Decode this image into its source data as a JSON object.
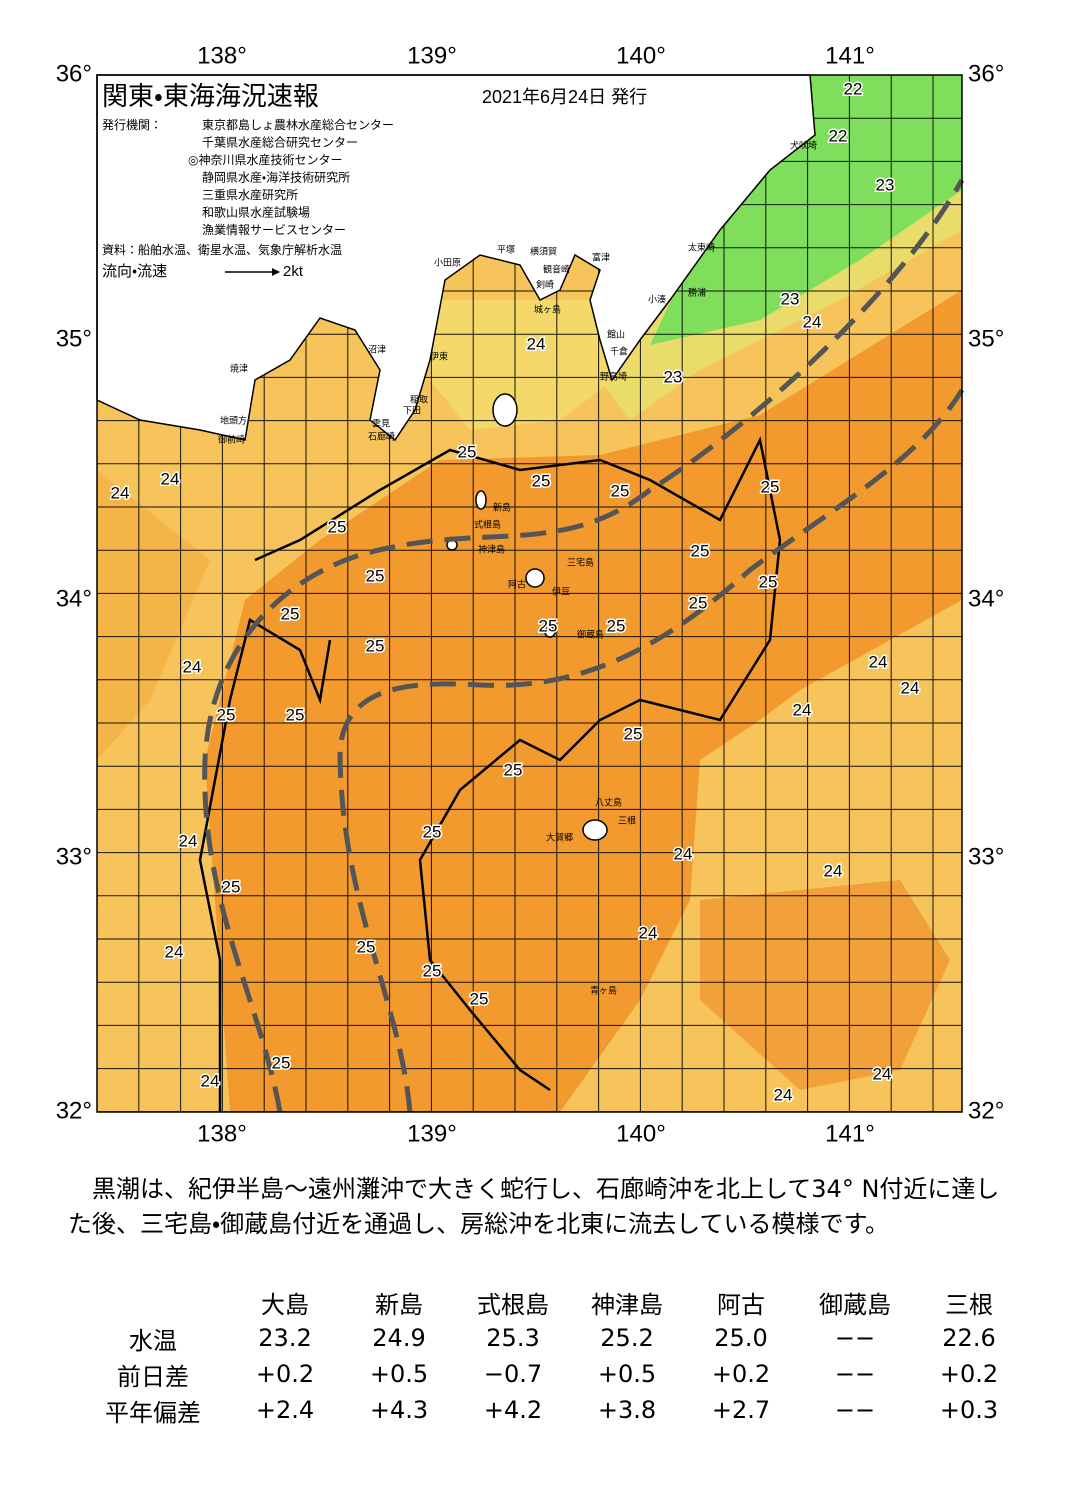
{
  "header": {
    "title": "関東・東海海況速報",
    "date": "2021年6月24日 発行",
    "issuer_label": "発行機関：",
    "issuers": [
      "東京都島しょ農林水産総合センター",
      "千葉県水産総合研究センター",
      "◎神奈川県水産技術センター",
      "静岡県水産・海洋技術研究所",
      "三重県水産研究所",
      "和歌山県水産試験場",
      "漁業情報サービスセンター"
    ],
    "source": "資料：船舶水温、衛星水温、気象庁解析水温",
    "flow_label": "流向・流速",
    "flow_scale": "2kt"
  },
  "lon_labels": [
    "138°",
    "139°",
    "140°",
    "141°"
  ],
  "lat_labels": [
    "36°",
    "35°",
    "34°",
    "33°",
    "32°"
  ],
  "map_labels": [
    "22",
    "22",
    "23",
    "23",
    "24",
    "24",
    "23",
    "25",
    "25",
    "25",
    "25",
    "24",
    "24",
    "25",
    "25",
    "25",
    "25",
    "25",
    "25",
    "25",
    "25",
    "25",
    "24",
    "24",
    "24",
    "25",
    "25",
    "24",
    "25",
    "25",
    "25",
    "24",
    "24",
    "24",
    "25",
    "24",
    "24",
    "25",
    "25",
    "25",
    "24",
    "25",
    "24",
    "24"
  ],
  "places": [
    "犬吠埼",
    "太東崎",
    "勝浦",
    "小湊",
    "富津",
    "館山",
    "千倉",
    "野島埼",
    "小田原",
    "平塚",
    "横須賀",
    "観音崎",
    "剣崎",
    "城ヶ島",
    "沼津",
    "伊東",
    "稲取",
    "下田",
    "雲見",
    "石廊崎",
    "焼津",
    "地頭方",
    "御前崎",
    "新島",
    "式根島",
    "神津島",
    "三宅島",
    "阿古",
    "伊豆",
    "御蔵島",
    "八丈島",
    "三根",
    "大賀郷",
    "青ヶ島"
  ],
  "description": "黒潮は、紀伊半島～遠州灘沖で大きく蛇行し、石廊崎沖を北上して34° N付近に達した後、三宅島・御蔵島付近を通過し、房総沖を北東に流去している模様です。",
  "table": {
    "columns": [
      "大島",
      "新島",
      "式根島",
      "神津島",
      "阿古",
      "御蔵島",
      "三根"
    ],
    "rows": [
      [
        "水温",
        "23.2",
        "24.9",
        "25.3",
        "25.2",
        "25.0",
        "−−",
        "22.6"
      ],
      [
        "前日差",
        "+0.2",
        "+0.5",
        "−0.7",
        "+0.5",
        "+0.2",
        "−−",
        "+0.2"
      ],
      [
        "平年偏差",
        "+2.4",
        "+4.3",
        "+4.2",
        "+3.8",
        "+2.7",
        "−−",
        "+0.3"
      ]
    ]
  }
}
